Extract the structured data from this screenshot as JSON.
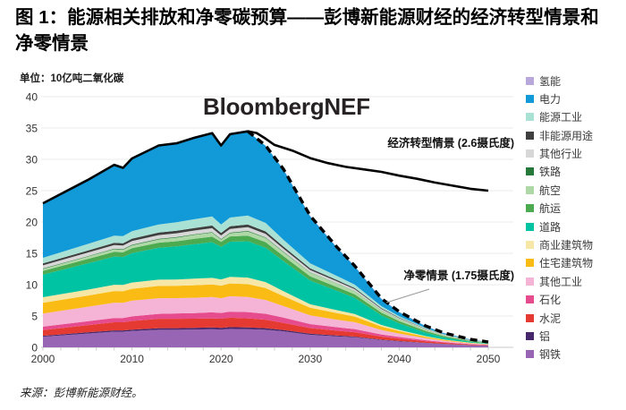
{
  "title": "图 1：能源相关排放和净零碳预算——彭博新能源财经的经济转型情景和净零情景",
  "unit_label": "单位：10亿吨二氧化碳",
  "watermark": "BloombergNEF",
  "source_note": "来源：彭博新能源财经。",
  "annotations": {
    "ets_label": "经济转型情景 (2.6摄氏度)",
    "nzs_label": "净零情景 (1.75摄氏度)"
  },
  "chart_data": {
    "type": "area",
    "stacked": true,
    "title": "能源相关排放和净零碳预算",
    "ylabel": "10亿吨二氧化碳",
    "ylim": [
      0,
      40
    ],
    "y_ticks": [
      0,
      5,
      10,
      15,
      20,
      25,
      30,
      35,
      40
    ],
    "x_ticks": [
      2000,
      2010,
      2020,
      2030,
      2040,
      2050
    ],
    "grid": true,
    "legend_position": "right",
    "x": [
      2000,
      2005,
      2008,
      2009,
      2010,
      2013,
      2015,
      2017,
      2019,
      2020,
      2021,
      2023,
      2025,
      2027,
      2030,
      2033,
      2035,
      2038,
      2040,
      2043,
      2045,
      2048,
      2050
    ],
    "series": [
      {
        "id": "steel",
        "label": "钢铁",
        "color": "#9865b4",
        "values": [
          1.7,
          2.2,
          2.5,
          2.5,
          2.6,
          2.8,
          2.8,
          2.85,
          2.9,
          2.85,
          2.95,
          2.9,
          2.8,
          2.55,
          2.0,
          1.75,
          1.6,
          1.15,
          0.95,
          0.68,
          0.52,
          0.34,
          0.26
        ]
      },
      {
        "id": "aluminum",
        "label": "铝",
        "color": "#46276b",
        "values": [
          0.15,
          0.18,
          0.2,
          0.2,
          0.22,
          0.25,
          0.26,
          0.27,
          0.28,
          0.27,
          0.28,
          0.28,
          0.26,
          0.22,
          0.17,
          0.13,
          0.11,
          0.08,
          0.06,
          0.04,
          0.03,
          0.02,
          0.015
        ]
      },
      {
        "id": "cement",
        "label": "水泥",
        "color": "#e53a31",
        "values": [
          0.9,
          1.15,
          1.3,
          1.3,
          1.4,
          1.5,
          1.5,
          1.45,
          1.45,
          1.45,
          1.5,
          1.45,
          1.35,
          1.15,
          0.9,
          0.78,
          0.7,
          0.48,
          0.38,
          0.25,
          0.18,
          0.1,
          0.07
        ]
      },
      {
        "id": "petrochemicals",
        "label": "石化",
        "color": "#e64b8e",
        "values": [
          0.55,
          0.62,
          0.68,
          0.68,
          0.72,
          0.8,
          0.85,
          0.9,
          0.95,
          0.92,
          0.97,
          1.0,
          0.95,
          0.82,
          0.65,
          0.56,
          0.5,
          0.34,
          0.26,
          0.16,
          0.11,
          0.06,
          0.04
        ]
      },
      {
        "id": "other-industry",
        "label": "其他工业",
        "color": "#f5b3d6",
        "values": [
          2.1,
          2.3,
          2.45,
          2.43,
          2.5,
          2.5,
          2.45,
          2.45,
          2.45,
          2.35,
          2.45,
          2.4,
          2.2,
          1.85,
          1.4,
          1.2,
          1.1,
          0.72,
          0.55,
          0.33,
          0.22,
          0.12,
          0.08
        ]
      },
      {
        "id": "residential-buildings",
        "label": "住宅建筑物",
        "color": "#fabc14",
        "values": [
          1.7,
          1.8,
          1.85,
          1.85,
          1.9,
          1.95,
          1.95,
          2.0,
          2.0,
          2.0,
          2.05,
          2.05,
          1.9,
          1.6,
          1.2,
          1.05,
          0.9,
          0.55,
          0.4,
          0.22,
          0.14,
          0.07,
          0.04
        ]
      },
      {
        "id": "commercial-buildings",
        "label": "商业建筑物",
        "color": "#f7e7a6",
        "values": [
          0.9,
          0.95,
          1.0,
          1.0,
          1.0,
          1.0,
          1.0,
          1.05,
          1.05,
          1.0,
          1.05,
          1.05,
          0.95,
          0.78,
          0.55,
          0.46,
          0.4,
          0.25,
          0.18,
          0.1,
          0.06,
          0.03,
          0.02
        ]
      },
      {
        "id": "road",
        "label": "道路",
        "color": "#00c3a4",
        "values": [
          3.6,
          4.2,
          4.5,
          4.45,
          4.7,
          5.1,
          5.3,
          5.5,
          5.7,
          5.2,
          5.6,
          5.8,
          5.5,
          4.8,
          3.8,
          3.1,
          2.6,
          1.55,
          1.05,
          0.55,
          0.33,
          0.15,
          0.08
        ]
      },
      {
        "id": "shipping",
        "label": "航运",
        "color": "#4cab50",
        "values": [
          0.6,
          0.68,
          0.75,
          0.74,
          0.78,
          0.8,
          0.82,
          0.85,
          0.87,
          0.8,
          0.85,
          0.9,
          0.88,
          0.8,
          0.68,
          0.6,
          0.55,
          0.42,
          0.35,
          0.25,
          0.19,
          0.11,
          0.08
        ]
      },
      {
        "id": "aviation",
        "label": "航空",
        "color": "#aed8a6",
        "values": [
          0.3,
          0.38,
          0.42,
          0.42,
          0.45,
          0.52,
          0.57,
          0.62,
          0.65,
          0.35,
          0.5,
          0.65,
          0.67,
          0.63,
          0.58,
          0.54,
          0.5,
          0.38,
          0.32,
          0.22,
          0.16,
          0.09,
          0.06
        ]
      },
      {
        "id": "rail",
        "label": "铁路",
        "color": "#27793a",
        "values": [
          0.09,
          0.09,
          0.1,
          0.1,
          0.1,
          0.1,
          0.1,
          0.1,
          0.1,
          0.09,
          0.1,
          0.1,
          0.09,
          0.08,
          0.06,
          0.05,
          0.04,
          0.03,
          0.025,
          0.015,
          0.01,
          0.006,
          0.004
        ]
      },
      {
        "id": "other-sectors",
        "label": "其他行业",
        "color": "#d7d7d7",
        "values": [
          0.5,
          0.55,
          0.58,
          0.58,
          0.6,
          0.6,
          0.6,
          0.6,
          0.62,
          0.58,
          0.6,
          0.6,
          0.55,
          0.47,
          0.35,
          0.31,
          0.28,
          0.18,
          0.13,
          0.08,
          0.05,
          0.025,
          0.015
        ]
      },
      {
        "id": "non-energy-use",
        "label": "非能源用途",
        "color": "#3f3f3f",
        "values": [
          0.3,
          0.33,
          0.35,
          0.35,
          0.37,
          0.39,
          0.4,
          0.4,
          0.42,
          0.4,
          0.42,
          0.42,
          0.4,
          0.33,
          0.27,
          0.22,
          0.19,
          0.12,
          0.09,
          0.05,
          0.035,
          0.02,
          0.012
        ]
      },
      {
        "id": "energy-industry",
        "label": "能源工业",
        "color": "#a9e2d4",
        "values": [
          0.9,
          1.05,
          1.15,
          1.15,
          1.2,
          1.3,
          1.35,
          1.4,
          1.45,
          1.35,
          1.4,
          1.45,
          1.35,
          1.1,
          0.8,
          0.65,
          0.55,
          0.32,
          0.22,
          0.12,
          0.08,
          0.04,
          0.025
        ]
      },
      {
        "id": "power",
        "label": "电力",
        "color": "#1199d8",
        "values": [
          8.7,
          10.2,
          11.3,
          10.9,
          11.6,
          12.6,
          12.6,
          13.0,
          13.3,
          12.6,
          13.3,
          13.4,
          12.3,
          11.2,
          7.5,
          4.5,
          2.9,
          1.15,
          0.65,
          0.28,
          0.16,
          0.07,
          0.04
        ]
      },
      {
        "id": "hydrogen",
        "label": "氢能",
        "color": "#b7a7da",
        "values": [
          0,
          0,
          0,
          0,
          0,
          0,
          0,
          0,
          0,
          0,
          0,
          0.02,
          0.05,
          0.08,
          0.1,
          0.1,
          0.09,
          0.08,
          0.07,
          0.05,
          0.04,
          0.025,
          0.02
        ]
      }
    ],
    "lines": [
      {
        "id": "economic-transition-scenario",
        "label": "经济转型情景 (2.6摄氏度)",
        "style": "solid",
        "color": "#000000",
        "follows_stack_top_until": 2023,
        "x": [
          2024,
          2025,
          2026,
          2028,
          2030,
          2032,
          2034,
          2036,
          2038,
          2040,
          2042,
          2044,
          2046,
          2048,
          2050
        ],
        "values": [
          34.2,
          33.3,
          32.3,
          31.4,
          30.2,
          29.4,
          28.8,
          28.4,
          28.0,
          27.4,
          26.9,
          26.3,
          25.8,
          25.3,
          25.0
        ]
      },
      {
        "id": "net-zero-scenario",
        "label": "净零情景 (1.75摄氏度)",
        "style": "dashed",
        "color": "#000000",
        "follows_stack_top_from": 2023
      }
    ]
  }
}
